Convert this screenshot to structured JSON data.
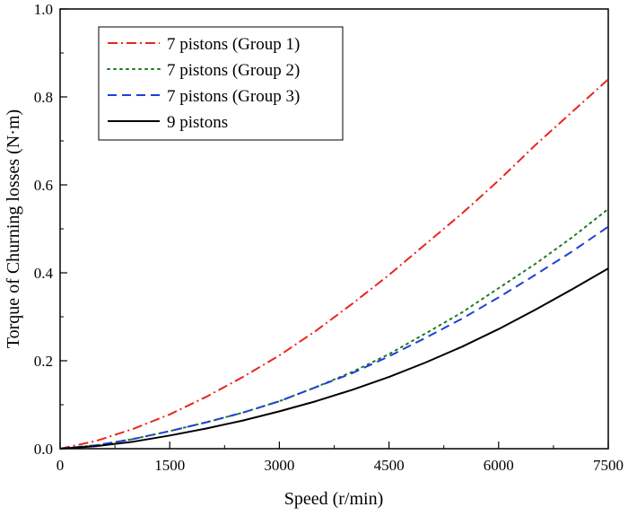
{
  "chart_data": {
    "type": "line",
    "xlabel": "Speed (r/min)",
    "ylabel": "Torque of Churning losses (N·m)",
    "xlim": [
      0,
      7500
    ],
    "ylim": [
      0,
      1.0
    ],
    "xticks": [
      0,
      1500,
      3000,
      4500,
      6000,
      7500
    ],
    "yticks": [
      0.0,
      0.2,
      0.4,
      0.6,
      0.8,
      1.0
    ],
    "x_tick_labels": [
      "0",
      "1500",
      "3000",
      "4500",
      "6000",
      "7500"
    ],
    "y_tick_labels": [
      "0.0",
      "0.2",
      "0.4",
      "0.6",
      "0.8",
      "1.0"
    ],
    "grid": false,
    "legend_position": "top-left",
    "series": [
      {
        "name": "7 pistons (Group 1)",
        "color": "#e8261f",
        "dash": "dash-dot",
        "x": [
          0,
          500,
          1000,
          1500,
          2000,
          2500,
          3000,
          3500,
          4000,
          4500,
          5000,
          5500,
          6000,
          6500,
          7000,
          7500
        ],
        "y": [
          0.0,
          0.018,
          0.045,
          0.078,
          0.118,
          0.163,
          0.212,
          0.268,
          0.33,
          0.395,
          0.465,
          0.535,
          0.61,
          0.69,
          0.765,
          0.84
        ]
      },
      {
        "name": "7 pistons (Group 2)",
        "color": "#1f7a1f",
        "dash": "dot",
        "x": [
          0,
          500,
          1000,
          1500,
          2000,
          2500,
          3000,
          3500,
          4000,
          4500,
          5000,
          5500,
          6000,
          6500,
          7000,
          7500
        ],
        "y": [
          0.0,
          0.008,
          0.022,
          0.04,
          0.06,
          0.082,
          0.108,
          0.14,
          0.175,
          0.215,
          0.262,
          0.31,
          0.365,
          0.42,
          0.48,
          0.545
        ]
      },
      {
        "name": "7 pistons (Group 3)",
        "color": "#1f3fd8",
        "dash": "dash",
        "x": [
          0,
          500,
          1000,
          1500,
          2000,
          2500,
          3000,
          3500,
          4000,
          4500,
          5000,
          5500,
          6000,
          6500,
          7000,
          7500
        ],
        "y": [
          0.0,
          0.008,
          0.022,
          0.04,
          0.06,
          0.082,
          0.108,
          0.14,
          0.172,
          0.21,
          0.252,
          0.296,
          0.344,
          0.395,
          0.448,
          0.505
        ]
      },
      {
        "name": "9 pistons",
        "color": "#000000",
        "dash": "solid",
        "x": [
          0,
          500,
          1000,
          1500,
          2000,
          2500,
          3000,
          3500,
          4000,
          4500,
          5000,
          5500,
          6000,
          6500,
          7000,
          7500
        ],
        "y": [
          0.0,
          0.006,
          0.016,
          0.03,
          0.046,
          0.064,
          0.085,
          0.108,
          0.134,
          0.163,
          0.196,
          0.232,
          0.272,
          0.316,
          0.362,
          0.41
        ]
      }
    ]
  }
}
